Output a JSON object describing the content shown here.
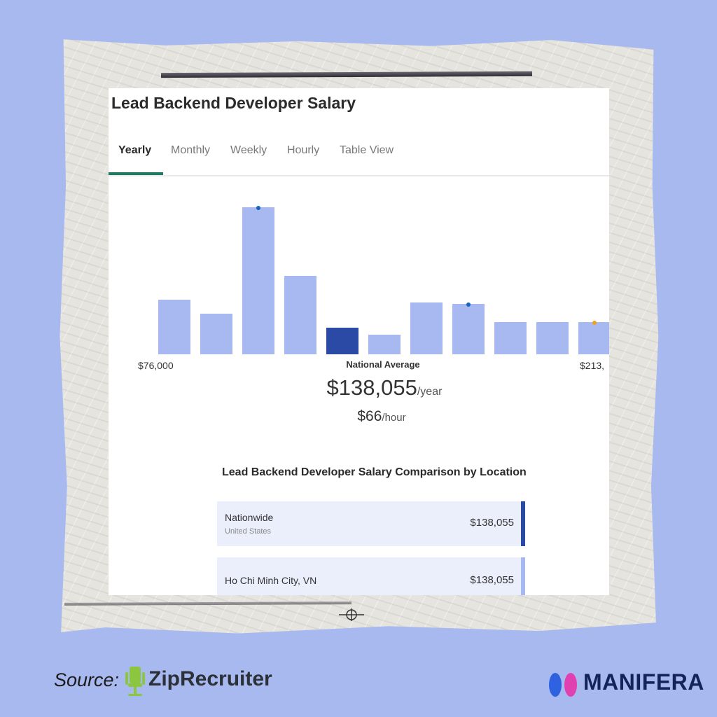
{
  "page": {
    "title": "Lead Backend Developer Salary",
    "tabs": [
      {
        "label": "Yearly",
        "active": true
      },
      {
        "label": "Monthly",
        "active": false
      },
      {
        "label": "Weekly",
        "active": false
      },
      {
        "label": "Hourly",
        "active": false
      },
      {
        "label": "Table View",
        "active": false
      }
    ]
  },
  "chart_data": {
    "type": "bar",
    "title": "",
    "xlabel": "",
    "ylabel": "",
    "range_min_label": "$76,000",
    "range_max_label": "$213,",
    "values": [
      39,
      29,
      105,
      56,
      19,
      14,
      37,
      36,
      23,
      23,
      23
    ],
    "ylim": [
      0,
      110
    ],
    "highlight_index": 4,
    "markers": [
      {
        "index": 2,
        "color": "#1565c0"
      },
      {
        "index": 7,
        "color": "#1565c0"
      },
      {
        "index": 10,
        "color": "#f0a020"
      }
    ],
    "colors": {
      "bar": "#a7b9f0",
      "highlight": "#2b4aa5"
    }
  },
  "summary": {
    "national_average_label": "National Average",
    "yearly_amount": "$138,055",
    "yearly_unit": "/year",
    "hourly_amount": "$66",
    "hourly_unit": "/hour"
  },
  "comparison": {
    "title": "Lead Backend Developer Salary Comparison by Location",
    "rows": [
      {
        "name": "Nationwide",
        "sub": "United States",
        "value": "$138,055",
        "edge_color": "#2b4aa5"
      },
      {
        "name": "Ho Chi Minh City, VN",
        "sub": "",
        "value": "$138,055",
        "edge_color": "#a7b9f0"
      }
    ]
  },
  "footer": {
    "source_label": "Source:",
    "zip_brand": "ZipRecruiter",
    "manifera_brand": "MANIFERA"
  },
  "colors": {
    "background": "#a8b9f0",
    "accent_tab": "#1d7a63"
  }
}
